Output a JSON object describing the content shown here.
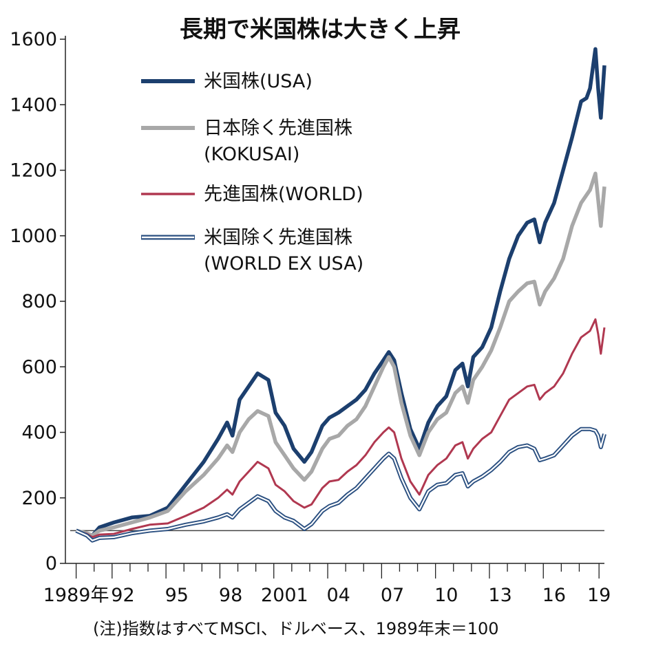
{
  "chart_data": {
    "type": "line",
    "title": "長期で米国株は大きく上昇",
    "note": "(注)指数はすべてMSCI、ドルベース、1989年末＝100",
    "ylim": [
      0,
      1600
    ],
    "yticks": [
      0,
      200,
      400,
      600,
      800,
      1000,
      1200,
      1400,
      1600
    ],
    "xlim": [
      1989.8,
      2019.3
    ],
    "xticks": [
      {
        "value": 1989.9,
        "label": "1989年"
      },
      {
        "value": 1992.5,
        "label": "92"
      },
      {
        "value": 1995.5,
        "label": "95"
      },
      {
        "value": 1998.5,
        "label": "98"
      },
      {
        "value": 2001.5,
        "label": "2001"
      },
      {
        "value": 2004.5,
        "label": "04"
      },
      {
        "value": 2007.5,
        "label": "07"
      },
      {
        "value": 2010.5,
        "label": "10"
      },
      {
        "value": 2013.5,
        "label": "13"
      },
      {
        "value": 2016.5,
        "label": "16"
      },
      {
        "value": 2019.0,
        "label": "19"
      }
    ],
    "baseline": 100,
    "series": [
      {
        "name": "米国株(USA)",
        "color": "#1c3f6e",
        "style": "solid",
        "points": [
          [
            1989.9,
            100
          ],
          [
            1990.5,
            90
          ],
          [
            1990.8,
            85
          ],
          [
            1991.2,
            110
          ],
          [
            1992,
            125
          ],
          [
            1993,
            140
          ],
          [
            1994,
            145
          ],
          [
            1995,
            170
          ],
          [
            1996,
            240
          ],
          [
            1997,
            310
          ],
          [
            1997.8,
            380
          ],
          [
            1998.3,
            430
          ],
          [
            1998.6,
            390
          ],
          [
            1999,
            500
          ],
          [
            1999.5,
            540
          ],
          [
            2000,
            580
          ],
          [
            2000.6,
            560
          ],
          [
            2001,
            460
          ],
          [
            2001.5,
            420
          ],
          [
            2002,
            350
          ],
          [
            2002.6,
            310
          ],
          [
            2003,
            340
          ],
          [
            2003.6,
            420
          ],
          [
            2004,
            445
          ],
          [
            2004.5,
            460
          ],
          [
            2005,
            480
          ],
          [
            2005.5,
            500
          ],
          [
            2006,
            530
          ],
          [
            2006.5,
            580
          ],
          [
            2007,
            620
          ],
          [
            2007.3,
            645
          ],
          [
            2007.6,
            620
          ],
          [
            2008,
            520
          ],
          [
            2008.5,
            410
          ],
          [
            2009,
            350
          ],
          [
            2009.5,
            430
          ],
          [
            2010,
            480
          ],
          [
            2010.5,
            510
          ],
          [
            2011,
            590
          ],
          [
            2011.4,
            610
          ],
          [
            2011.7,
            540
          ],
          [
            2012,
            630
          ],
          [
            2012.5,
            660
          ],
          [
            2013,
            720
          ],
          [
            2013.5,
            830
          ],
          [
            2014,
            930
          ],
          [
            2014.5,
            1000
          ],
          [
            2015,
            1040
          ],
          [
            2015.4,
            1050
          ],
          [
            2015.7,
            980
          ],
          [
            2016,
            1040
          ],
          [
            2016.5,
            1100
          ],
          [
            2017,
            1200
          ],
          [
            2017.5,
            1300
          ],
          [
            2018,
            1410
          ],
          [
            2018.3,
            1420
          ],
          [
            2018.5,
            1450
          ],
          [
            2018.8,
            1570
          ],
          [
            2018.95,
            1450
          ],
          [
            2019.1,
            1360
          ],
          [
            2019.3,
            1520
          ]
        ]
      },
      {
        "name": "日本除く先進国株(KOKUSAI)",
        "color": "#a8a8a8",
        "style": "solid",
        "points": [
          [
            1989.9,
            100
          ],
          [
            1990.5,
            92
          ],
          [
            1990.8,
            85
          ],
          [
            1991.2,
            100
          ],
          [
            1992,
            110
          ],
          [
            1993,
            125
          ],
          [
            1994,
            140
          ],
          [
            1995,
            160
          ],
          [
            1996,
            220
          ],
          [
            1997,
            270
          ],
          [
            1997.8,
            320
          ],
          [
            1998.3,
            360
          ],
          [
            1998.6,
            340
          ],
          [
            1999,
            400
          ],
          [
            1999.5,
            440
          ],
          [
            2000,
            465
          ],
          [
            2000.6,
            450
          ],
          [
            2001,
            370
          ],
          [
            2001.5,
            330
          ],
          [
            2002,
            290
          ],
          [
            2002.6,
            255
          ],
          [
            2003,
            280
          ],
          [
            2003.6,
            350
          ],
          [
            2004,
            380
          ],
          [
            2004.5,
            390
          ],
          [
            2005,
            420
          ],
          [
            2005.5,
            440
          ],
          [
            2006,
            480
          ],
          [
            2006.5,
            540
          ],
          [
            2007,
            600
          ],
          [
            2007.3,
            630
          ],
          [
            2007.6,
            600
          ],
          [
            2008,
            490
          ],
          [
            2008.5,
            390
          ],
          [
            2009,
            330
          ],
          [
            2009.5,
            400
          ],
          [
            2010,
            440
          ],
          [
            2010.5,
            460
          ],
          [
            2011,
            520
          ],
          [
            2011.4,
            540
          ],
          [
            2011.7,
            490
          ],
          [
            2012,
            560
          ],
          [
            2012.5,
            600
          ],
          [
            2013,
            650
          ],
          [
            2013.5,
            720
          ],
          [
            2014,
            800
          ],
          [
            2014.5,
            830
          ],
          [
            2015,
            855
          ],
          [
            2015.4,
            860
          ],
          [
            2015.7,
            790
          ],
          [
            2016,
            830
          ],
          [
            2016.5,
            870
          ],
          [
            2017,
            930
          ],
          [
            2017.5,
            1030
          ],
          [
            2018,
            1100
          ],
          [
            2018.5,
            1140
          ],
          [
            2018.8,
            1190
          ],
          [
            2018.95,
            1110
          ],
          [
            2019.1,
            1030
          ],
          [
            2019.3,
            1150
          ]
        ]
      },
      {
        "name": "先進国株(WORLD)",
        "color": "#b03850",
        "style": "solid",
        "points": [
          [
            1989.9,
            100
          ],
          [
            1990.5,
            90
          ],
          [
            1990.8,
            80
          ],
          [
            1991.2,
            88
          ],
          [
            1992,
            90
          ],
          [
            1993,
            105
          ],
          [
            1994,
            118
          ],
          [
            1995,
            122
          ],
          [
            1996,
            145
          ],
          [
            1997,
            170
          ],
          [
            1997.8,
            200
          ],
          [
            1998.3,
            225
          ],
          [
            1998.6,
            210
          ],
          [
            1999,
            250
          ],
          [
            1999.5,
            280
          ],
          [
            2000,
            310
          ],
          [
            2000.6,
            290
          ],
          [
            2001,
            240
          ],
          [
            2001.5,
            220
          ],
          [
            2002,
            190
          ],
          [
            2002.6,
            170
          ],
          [
            2003,
            180
          ],
          [
            2003.6,
            230
          ],
          [
            2004,
            250
          ],
          [
            2004.5,
            255
          ],
          [
            2005,
            280
          ],
          [
            2005.5,
            300
          ],
          [
            2006,
            330
          ],
          [
            2006.5,
            370
          ],
          [
            2007,
            400
          ],
          [
            2007.3,
            415
          ],
          [
            2007.6,
            400
          ],
          [
            2008,
            320
          ],
          [
            2008.5,
            250
          ],
          [
            2009,
            210
          ],
          [
            2009.5,
            270
          ],
          [
            2010,
            300
          ],
          [
            2010.5,
            320
          ],
          [
            2011,
            360
          ],
          [
            2011.4,
            370
          ],
          [
            2011.7,
            320
          ],
          [
            2012,
            350
          ],
          [
            2012.5,
            380
          ],
          [
            2013,
            400
          ],
          [
            2013.5,
            450
          ],
          [
            2014,
            500
          ],
          [
            2014.5,
            520
          ],
          [
            2015,
            540
          ],
          [
            2015.4,
            545
          ],
          [
            2015.7,
            500
          ],
          [
            2016,
            520
          ],
          [
            2016.5,
            540
          ],
          [
            2017,
            580
          ],
          [
            2017.5,
            640
          ],
          [
            2018,
            690
          ],
          [
            2018.5,
            710
          ],
          [
            2018.8,
            745
          ],
          [
            2018.95,
            700
          ],
          [
            2019.1,
            640
          ],
          [
            2019.3,
            720
          ]
        ]
      },
      {
        "name": "米国除く先進国株(WORLD EX USA)",
        "color": "#2a4f80",
        "style": "double",
        "points": [
          [
            1989.9,
            100
          ],
          [
            1990.5,
            85
          ],
          [
            1990.8,
            70
          ],
          [
            1991.2,
            78
          ],
          [
            1992,
            80
          ],
          [
            1993,
            92
          ],
          [
            1994,
            100
          ],
          [
            1995,
            105
          ],
          [
            1996,
            118
          ],
          [
            1997,
            128
          ],
          [
            1997.8,
            140
          ],
          [
            1998.3,
            150
          ],
          [
            1998.6,
            140
          ],
          [
            1999,
            165
          ],
          [
            1999.5,
            185
          ],
          [
            2000,
            205
          ],
          [
            2000.6,
            190
          ],
          [
            2001,
            160
          ],
          [
            2001.5,
            140
          ],
          [
            2002,
            130
          ],
          [
            2002.6,
            105
          ],
          [
            2003,
            120
          ],
          [
            2003.6,
            160
          ],
          [
            2004,
            175
          ],
          [
            2004.5,
            185
          ],
          [
            2005,
            210
          ],
          [
            2005.5,
            230
          ],
          [
            2006,
            260
          ],
          [
            2006.5,
            290
          ],
          [
            2007,
            320
          ],
          [
            2007.3,
            335
          ],
          [
            2007.6,
            320
          ],
          [
            2008,
            260
          ],
          [
            2008.5,
            200
          ],
          [
            2009,
            165
          ],
          [
            2009.5,
            220
          ],
          [
            2010,
            240
          ],
          [
            2010.5,
            245
          ],
          [
            2011,
            270
          ],
          [
            2011.4,
            275
          ],
          [
            2011.7,
            235
          ],
          [
            2012,
            250
          ],
          [
            2012.5,
            265
          ],
          [
            2013,
            285
          ],
          [
            2013.5,
            310
          ],
          [
            2014,
            340
          ],
          [
            2014.5,
            355
          ],
          [
            2015,
            360
          ],
          [
            2015.4,
            350
          ],
          [
            2015.7,
            315
          ],
          [
            2016,
            320
          ],
          [
            2016.5,
            330
          ],
          [
            2017,
            360
          ],
          [
            2017.5,
            390
          ],
          [
            2018,
            410
          ],
          [
            2018.5,
            410
          ],
          [
            2018.8,
            405
          ],
          [
            2018.95,
            390
          ],
          [
            2019.1,
            355
          ],
          [
            2019.3,
            395
          ]
        ]
      }
    ],
    "legend": [
      {
        "lines": [
          "米国株(USA)"
        ],
        "color": "#1c3f6e",
        "style": "solid"
      },
      {
        "lines": [
          "日本除く先進国株",
          "(KOKUSAI)"
        ],
        "color": "#a8a8a8",
        "style": "solid"
      },
      {
        "lines": [
          "先進国株(WORLD)"
        ],
        "color": "#b03850",
        "style": "thin"
      },
      {
        "lines": [
          "米国除く先進国株",
          "(WORLD EX USA)"
        ],
        "color": "#2a4f80",
        "style": "double"
      }
    ]
  }
}
